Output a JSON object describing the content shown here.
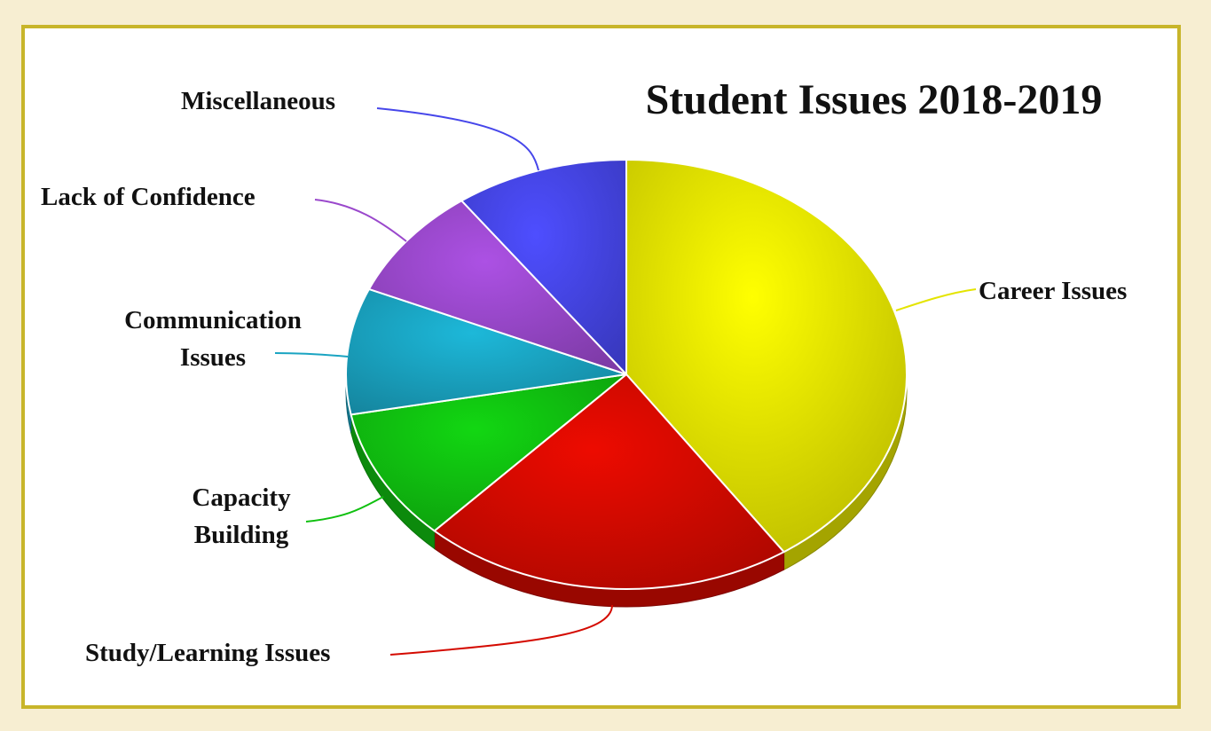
{
  "chart_data": {
    "type": "pie",
    "title": "Student Issues 2018-2019",
    "categories": [
      "Career Issues",
      "Study/Learning Issues",
      "Capacity Building",
      "Communication Issues",
      "Lack of Confidence",
      "Miscellaneous"
    ],
    "values": [
      40.5,
      21.5,
      10,
      9.5,
      8.5,
      10
    ],
    "colors": [
      "#e4e400",
      "#d40a00",
      "#10c010",
      "#1aa4c2",
      "#9a48cc",
      "#4646ea"
    ],
    "label_lines": {
      "Career Issues": [
        "Career Issues"
      ],
      "Study/Learning Issues": [
        "Study/Learning Issues"
      ],
      "Capacity Building": [
        "Capacity",
        "Building"
      ],
      "Communication Issues": [
        "Communication",
        "Issues"
      ],
      "Lack of Confidence": [
        "Lack of Confidence"
      ],
      "Miscellaneous": [
        "Miscellaneous"
      ]
    }
  }
}
